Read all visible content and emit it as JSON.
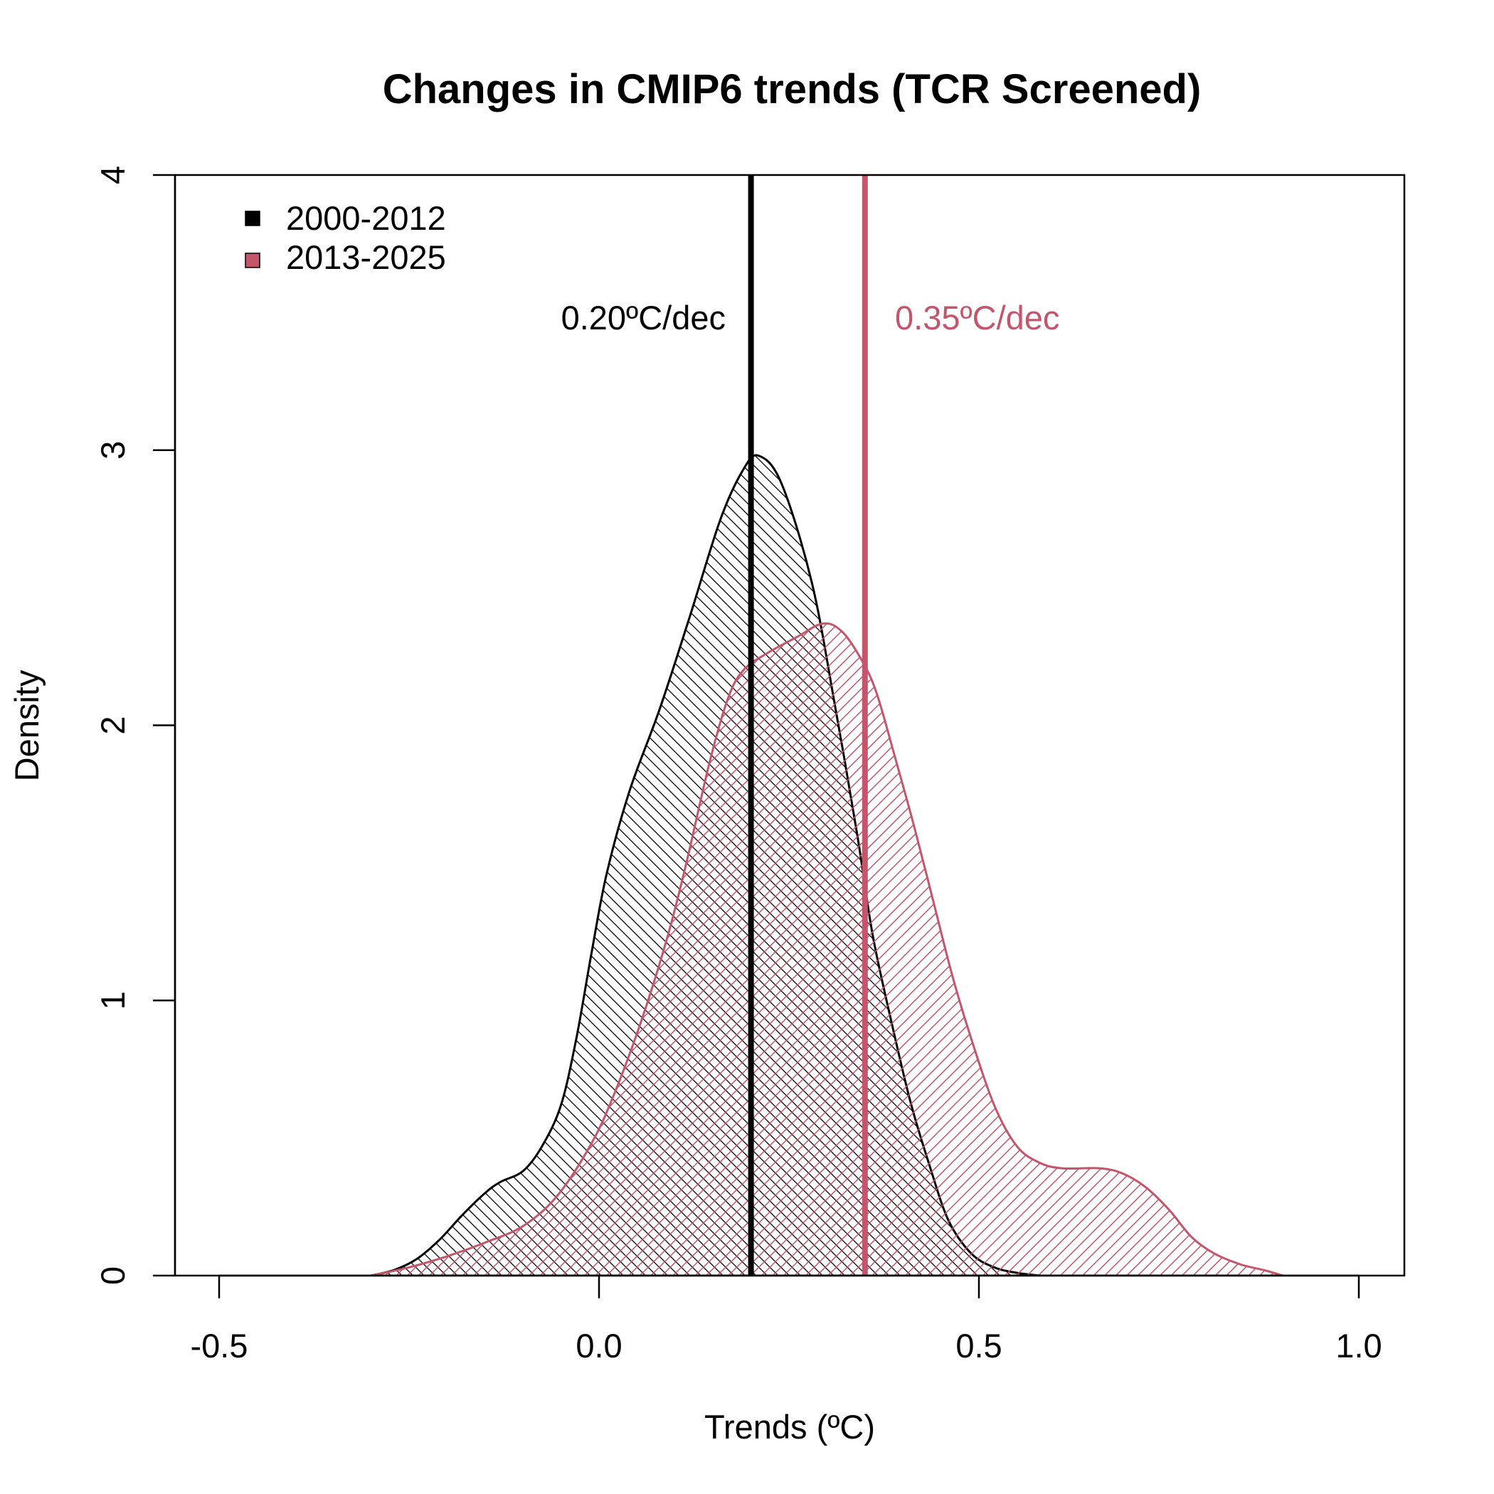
{
  "chart_data": {
    "type": "area",
    "subtype": "density",
    "title": "Changes in CMIP6 trends (TCR Screened)",
    "xlabel": "Trends (ºC)",
    "ylabel": "Density",
    "xlim": [
      -0.56,
      1.06
    ],
    "ylim": [
      0,
      4
    ],
    "x_ticks": [
      -0.5,
      0.0,
      0.5,
      1.0
    ],
    "x_tick_labels": [
      "-0.5",
      "0.0",
      "0.5",
      "1.0"
    ],
    "y_ticks": [
      0,
      1,
      2,
      3,
      4
    ],
    "y_tick_labels": [
      "0",
      "1",
      "2",
      "3",
      "4"
    ],
    "grid": false,
    "legend_position": "top-left",
    "series": [
      {
        "name": "2000-2012",
        "color": "#000000",
        "hatch": "diagonal-up",
        "mean_line": 0.2,
        "mean_label": "0.20ºC/dec",
        "x": [
          -0.3,
          -0.27,
          -0.24,
          -0.21,
          -0.18,
          -0.15,
          -0.13,
          -0.1,
          -0.075,
          -0.05,
          -0.03,
          -0.01,
          0.01,
          0.04,
          0.08,
          0.12,
          0.16,
          0.19,
          0.21,
          0.24,
          0.28,
          0.31,
          0.34,
          0.36,
          0.385,
          0.41,
          0.435,
          0.46,
          0.49,
          0.52,
          0.55,
          0.58
        ],
        "y": [
          0.0,
          0.02,
          0.06,
          0.13,
          0.22,
          0.3,
          0.34,
          0.38,
          0.47,
          0.62,
          0.86,
          1.17,
          1.46,
          1.76,
          2.06,
          2.4,
          2.75,
          2.93,
          2.98,
          2.88,
          2.52,
          2.08,
          1.6,
          1.24,
          0.92,
          0.63,
          0.4,
          0.2,
          0.08,
          0.03,
          0.01,
          0.0
        ]
      },
      {
        "name": "2013-2025",
        "color": "#C4566C",
        "hatch": "diagonal-down",
        "mean_line": 0.35,
        "mean_label": "0.35ºC/dec",
        "x": [
          -0.3,
          -0.25,
          -0.2,
          -0.15,
          -0.1,
          -0.055,
          -0.01,
          0.02,
          0.055,
          0.09,
          0.115,
          0.145,
          0.17,
          0.19,
          0.22,
          0.26,
          0.295,
          0.32,
          0.345,
          0.365,
          0.39,
          0.415,
          0.44,
          0.465,
          0.49,
          0.52,
          0.55,
          0.58,
          0.61,
          0.66,
          0.69,
          0.72,
          0.75,
          0.78,
          0.81,
          0.845,
          0.875,
          0.9
        ],
        "y": [
          0.0,
          0.03,
          0.07,
          0.12,
          0.18,
          0.29,
          0.48,
          0.66,
          0.92,
          1.23,
          1.5,
          1.86,
          2.1,
          2.2,
          2.26,
          2.32,
          2.37,
          2.34,
          2.24,
          2.12,
          1.88,
          1.63,
          1.36,
          1.09,
          0.86,
          0.62,
          0.47,
          0.41,
          0.39,
          0.39,
          0.37,
          0.32,
          0.24,
          0.14,
          0.08,
          0.04,
          0.02,
          0.0
        ]
      }
    ],
    "legend": [
      {
        "label": "2000-2012",
        "color": "#000000"
      },
      {
        "label": "2013-2025",
        "color": "#C4566C"
      }
    ]
  }
}
